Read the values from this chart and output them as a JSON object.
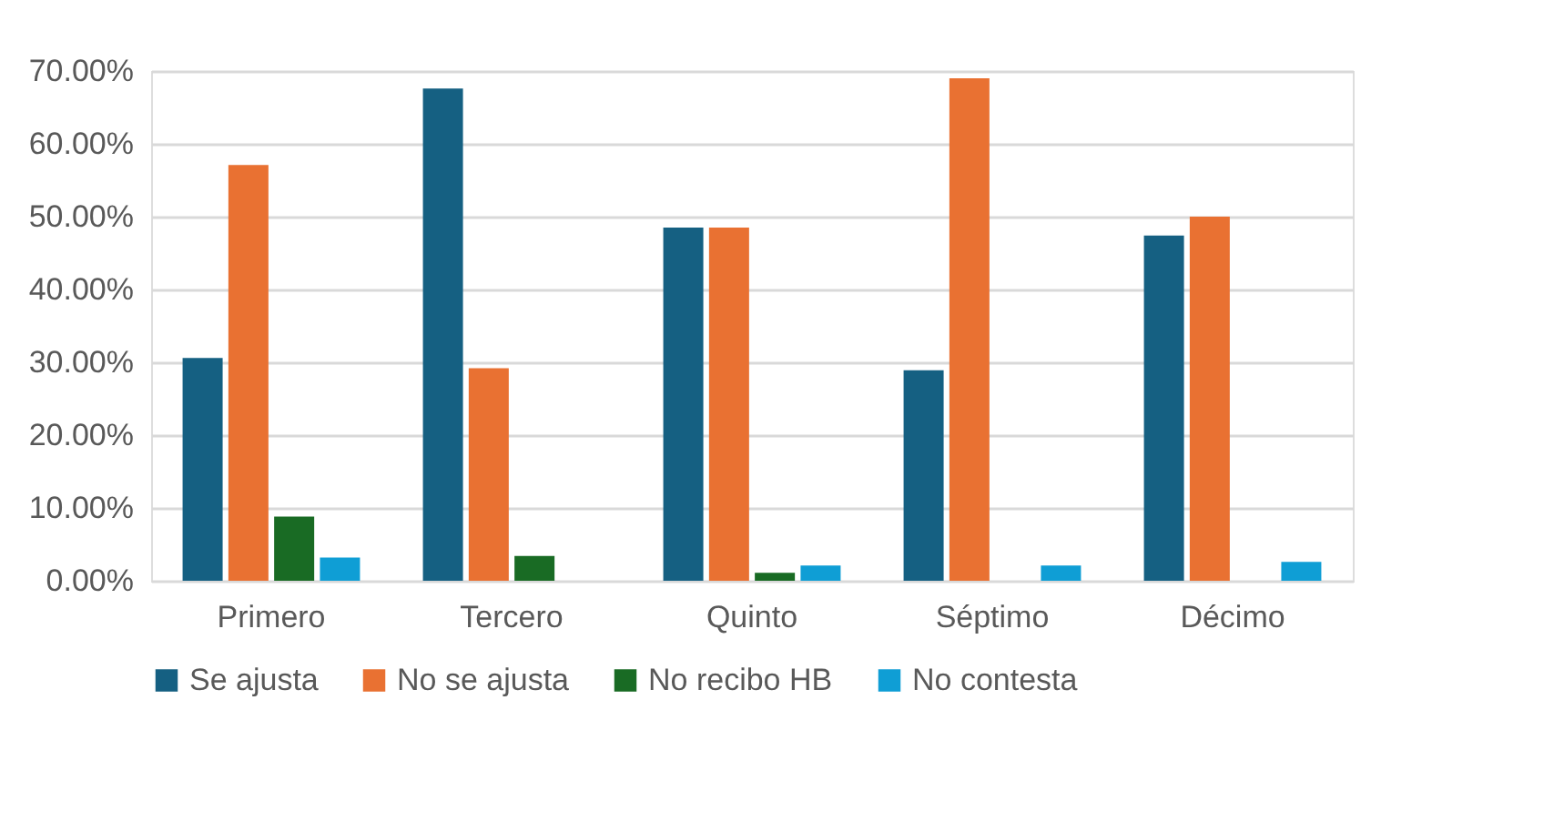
{
  "chart_data": {
    "type": "bar",
    "categories": [
      "Primero",
      "Tercero",
      "Quinto",
      "Séptimo",
      "Décimo"
    ],
    "series": [
      {
        "name": "Se ajusta",
        "color": "#156082",
        "values": [
          30.6,
          67.6,
          48.5,
          28.9,
          47.4
        ]
      },
      {
        "name": "No se ajusta",
        "color": "#e97132",
        "values": [
          57.1,
          29.2,
          48.5,
          69.0,
          50.0
        ]
      },
      {
        "name": "No recibo HB",
        "color": "#196b24",
        "values": [
          8.8,
          3.4,
          1.1,
          0,
          0
        ]
      },
      {
        "name": "No contesta",
        "color": "#0f9ed5",
        "values": [
          3.2,
          0,
          2.1,
          2.1,
          2.6
        ]
      }
    ],
    "ylim": [
      0,
      70
    ],
    "yticks": [
      {
        "value": 0,
        "label": "0.00%"
      },
      {
        "value": 10,
        "label": "10.00%"
      },
      {
        "value": 20,
        "label": "20.00%"
      },
      {
        "value": 30,
        "label": "30.00%"
      },
      {
        "value": 40,
        "label": "40.00%"
      },
      {
        "value": 50,
        "label": "50.00%"
      },
      {
        "value": 60,
        "label": "60.00%"
      },
      {
        "value": 70,
        "label": "70.00%"
      }
    ],
    "grid": "y",
    "legend": "bottom"
  }
}
